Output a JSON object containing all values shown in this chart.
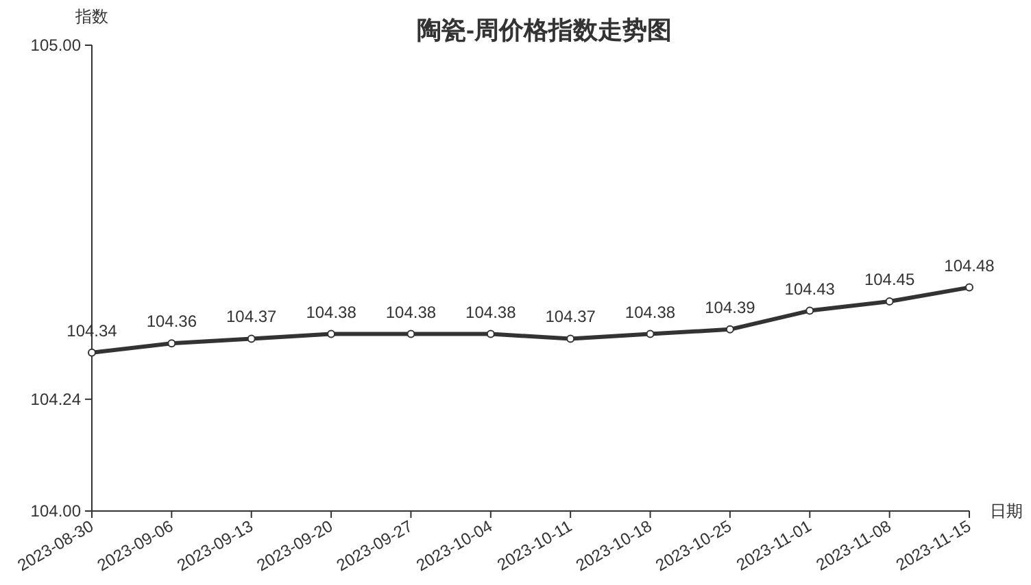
{
  "chart_data": {
    "type": "line",
    "title": "陶瓷-周价格指数走势图",
    "xlabel": "日期",
    "ylabel": "指数",
    "categories": [
      "2023-08-30",
      "2023-09-06",
      "2023-09-13",
      "2023-09-20",
      "2023-09-27",
      "2023-10-04",
      "2023-10-11",
      "2023-10-18",
      "2023-10-25",
      "2023-11-01",
      "2023-11-08",
      "2023-11-15"
    ],
    "series": [
      {
        "color": "#333333",
        "values": [
          104.34,
          104.36,
          104.37,
          104.38,
          104.38,
          104.38,
          104.37,
          104.38,
          104.39,
          104.43,
          104.45,
          104.48
        ]
      }
    ],
    "ylim": [
      104,
      105
    ],
    "yticks": [
      {
        "value": 104,
        "label": "104.00"
      },
      {
        "value": 104.24,
        "label": "104.24"
      },
      {
        "value": 105,
        "label": "105.00"
      }
    ],
    "data_labels": true,
    "marker": "circle",
    "line_style": "solid"
  }
}
